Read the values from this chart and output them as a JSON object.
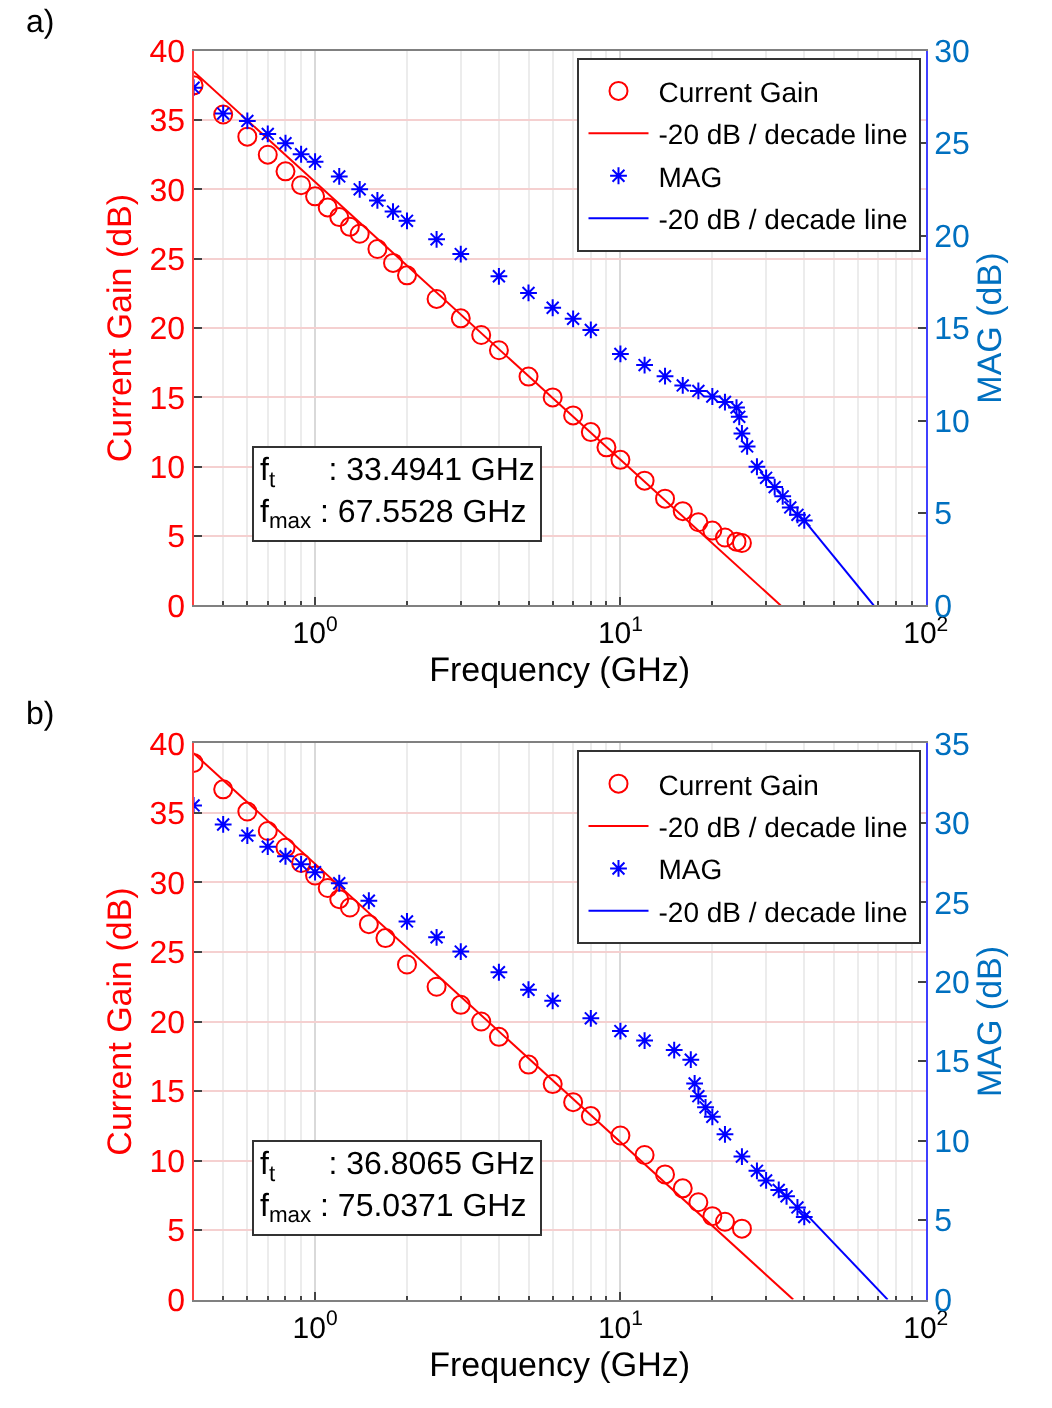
{
  "chart_data": [
    {
      "type": "scatter",
      "xlabel": "Frequency (GHz)",
      "ylabel": "Current Gain (dB)",
      "y2label": "MAG (dB)",
      "log": "x",
      "grid": true,
      "legend": "top right",
      "xlim": [
        0.4,
        100
      ],
      "xticks": [
        {
          "value": 1,
          "label": "10$^{0}$"
        },
        {
          "value": 10,
          "label": "10$^{1}$"
        },
        {
          "value": 100,
          "label": "10$^{2}$"
        }
      ],
      "ylim": [
        0,
        40
      ],
      "yticks": [
        0,
        5,
        10,
        15,
        20,
        25,
        30,
        35,
        40
      ],
      "y2lim": [
        0,
        30
      ],
      "y2ticks": [
        0,
        5,
        10,
        15,
        20,
        25,
        30
      ],
      "annotations": [
        "a)",
        "f$_{t}$      : 33.4941 GHz\nf$_{max}$ : 67.5528 GHz"
      ],
      "series": [
        {
          "name": "Current Gain",
          "marker": "circle",
          "color": "#ff0000",
          "x": [
            0.4,
            0.5,
            0.6,
            0.7,
            0.8,
            0.9,
            1.0,
            1.1,
            1.2,
            1.3,
            1.4,
            1.6,
            1.8,
            2.0,
            2.5,
            3.0,
            3.5,
            4,
            5,
            6,
            7,
            8,
            9,
            10,
            12,
            14,
            16,
            18,
            20,
            22,
            24,
            25
          ],
          "values": [
            37.5,
            35.4,
            33.8,
            32.5,
            31.3,
            30.3,
            29.5,
            28.7,
            28.0,
            27.3,
            26.8,
            25.7,
            24.7,
            23.8,
            22.1,
            20.7,
            19.5,
            18.4,
            16.5,
            15.0,
            13.7,
            12.5,
            11.4,
            10.5,
            9.0,
            7.7,
            6.8,
            6.0,
            5.4,
            4.9,
            4.6,
            4.5
          ]
        },
        {
          "name": "-20 dB / decade line",
          "type": "line",
          "color": "#ff0000",
          "x": [
            0.4,
            33.4941
          ],
          "values": [
            38.5,
            0
          ]
        },
        {
          "name": "MAG",
          "marker": "cross",
          "axis": "y2",
          "color": "#0000ff",
          "x": [
            0.4,
            0.5,
            0.6,
            0.7,
            0.8,
            0.9,
            1.0,
            1.2,
            1.4,
            1.6,
            1.8,
            2.0,
            2.5,
            3,
            4,
            5,
            6,
            7,
            8,
            10,
            12,
            14,
            16,
            18,
            20,
            22,
            24,
            24.5,
            25,
            26,
            28,
            30,
            32,
            34,
            36,
            38,
            40
          ],
          "values": [
            28.0,
            26.6,
            26.2,
            25.5,
            25.0,
            24.4,
            24.0,
            23.2,
            22.5,
            21.9,
            21.3,
            20.8,
            19.8,
            19.0,
            17.8,
            16.9,
            16.1,
            15.5,
            14.9,
            13.6,
            13.0,
            12.4,
            11.9,
            11.6,
            11.3,
            11.0,
            10.7,
            10.2,
            9.3,
            8.6,
            7.5,
            6.9,
            6.4,
            5.9,
            5.3,
            4.9,
            4.6
          ]
        },
        {
          "name": "-20 dB / decade line",
          "type": "line",
          "axis": "y2",
          "color": "#0000ff",
          "x": [
            40,
            67.5528
          ],
          "values": [
            4.6,
            0
          ]
        }
      ]
    },
    {
      "type": "scatter",
      "xlabel": "Frequency (GHz)",
      "ylabel": "Current Gain (dB)",
      "y2label": "MAG (dB)",
      "log": "x",
      "grid": true,
      "legend": "top right",
      "xlim": [
        0.4,
        100
      ],
      "xticks": [
        {
          "value": 1,
          "label": "10$^{0}$"
        },
        {
          "value": 10,
          "label": "10$^{1}$"
        },
        {
          "value": 100,
          "label": "10$^{2}$"
        }
      ],
      "ylim": [
        0,
        40
      ],
      "yticks": [
        0,
        5,
        10,
        15,
        20,
        25,
        30,
        35,
        40
      ],
      "y2lim": [
        0,
        35
      ],
      "y2ticks": [
        0,
        5,
        10,
        15,
        20,
        25,
        30,
        35
      ],
      "annotations": [
        "b)",
        "f$_{t}$      : 36.8065 GHz\nf$_{max}$ : 75.0371 GHz"
      ],
      "series": [
        {
          "name": "Current Gain",
          "marker": "circle",
          "color": "#ff0000",
          "x": [
            0.4,
            0.5,
            0.6,
            0.7,
            0.8,
            0.9,
            1.0,
            1.1,
            1.2,
            1.3,
            1.5,
            1.7,
            2,
            2.5,
            3,
            3.5,
            4,
            5,
            6,
            7,
            8,
            10,
            12,
            14,
            16,
            18,
            20,
            22,
            25
          ],
          "values": [
            38.6,
            36.7,
            35.1,
            33.7,
            32.5,
            31.4,
            30.5,
            29.6,
            28.8,
            28.2,
            27.0,
            26.0,
            24.1,
            22.5,
            21.2,
            20.0,
            18.9,
            16.9,
            15.5,
            14.2,
            13.2,
            11.8,
            10.4,
            9.0,
            8.0,
            7.0,
            6.0,
            5.6,
            5.1
          ]
        },
        {
          "name": "-20 dB / decade line",
          "type": "line",
          "color": "#ff0000",
          "x": [
            0.4,
            36.8065
          ],
          "values": [
            39.3,
            0
          ]
        },
        {
          "name": "MAG",
          "marker": "cross",
          "axis": "y2",
          "color": "#0000ff",
          "x": [
            0.4,
            0.5,
            0.6,
            0.7,
            0.8,
            0.9,
            1.0,
            1.2,
            1.5,
            2,
            2.5,
            3,
            4,
            5,
            6,
            8,
            10,
            12,
            15,
            17,
            17.5,
            18,
            19,
            20,
            22,
            25,
            28,
            30,
            33,
            35,
            38,
            40
          ],
          "values": [
            31.1,
            29.9,
            29.2,
            28.5,
            27.9,
            27.4,
            26.9,
            26.2,
            25.1,
            23.8,
            22.8,
            21.9,
            20.6,
            19.5,
            18.8,
            17.7,
            16.9,
            16.3,
            15.7,
            15.1,
            13.6,
            12.8,
            12.1,
            11.5,
            10.4,
            9.0,
            8.1,
            7.5,
            6.9,
            6.5,
            5.8,
            5.2
          ]
        },
        {
          "name": "-20 dB / decade line",
          "type": "line",
          "axis": "y2",
          "color": "#0000ff",
          "x": [
            40,
            75.0371
          ],
          "values": [
            5.5,
            0
          ]
        }
      ]
    }
  ]
}
